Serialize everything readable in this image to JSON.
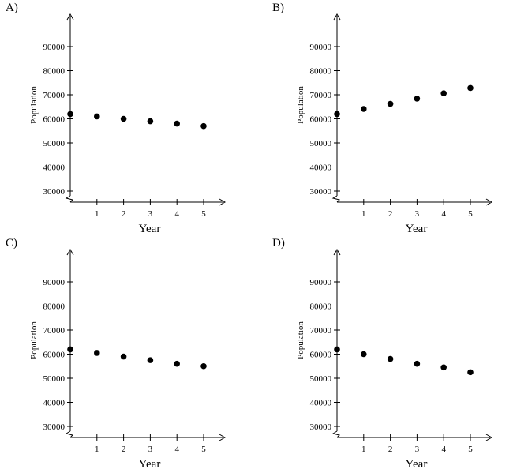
{
  "chart_data": [
    {
      "option": "A)",
      "type": "scatter",
      "xlabel": "Year",
      "ylabel": "Population",
      "x": [
        0,
        1,
        2,
        3,
        4,
        5
      ],
      "y": [
        62000,
        61000,
        60000,
        59000,
        58000,
        57000
      ],
      "xticks": [
        1,
        2,
        3,
        4,
        5
      ],
      "yticks": [
        30000,
        40000,
        50000,
        60000,
        70000,
        80000,
        90000
      ],
      "xlim": [
        0,
        5
      ],
      "ylim": [
        30000,
        90000
      ],
      "axis_break": "y",
      "grid": false,
      "legend": "none"
    },
    {
      "option": "B)",
      "type": "scatter",
      "xlabel": "Year",
      "ylabel": "Population",
      "x": [
        0,
        1,
        2,
        3,
        4,
        5
      ],
      "y": [
        62000,
        64100,
        66200,
        68400,
        70600,
        72800
      ],
      "xticks": [
        1,
        2,
        3,
        4,
        5
      ],
      "yticks": [
        30000,
        40000,
        50000,
        60000,
        70000,
        80000,
        90000
      ],
      "xlim": [
        0,
        5
      ],
      "ylim": [
        30000,
        90000
      ],
      "axis_break": "y",
      "grid": false,
      "legend": "none"
    },
    {
      "option": "C)",
      "type": "scatter",
      "xlabel": "Year",
      "ylabel": "Population",
      "x": [
        0,
        1,
        2,
        3,
        4,
        5
      ],
      "y": [
        62000,
        60500,
        59000,
        57500,
        56000,
        55000
      ],
      "xticks": [
        1,
        2,
        3,
        4,
        5
      ],
      "yticks": [
        30000,
        40000,
        50000,
        60000,
        70000,
        80000,
        90000
      ],
      "xlim": [
        0,
        5
      ],
      "ylim": [
        30000,
        90000
      ],
      "axis_break": "y",
      "grid": false,
      "legend": "none"
    },
    {
      "option": "D)",
      "type": "scatter",
      "xlabel": "Year",
      "ylabel": "Population",
      "x": [
        0,
        1,
        2,
        3,
        4,
        5
      ],
      "y": [
        62000,
        60000,
        58000,
        56000,
        54500,
        52500
      ],
      "xticks": [
        1,
        2,
        3,
        4,
        5
      ],
      "yticks": [
        30000,
        40000,
        50000,
        60000,
        70000,
        80000,
        90000
      ],
      "xlim": [
        0,
        5
      ],
      "ylim": [
        30000,
        90000
      ],
      "axis_break": "y",
      "grid": false,
      "legend": "none"
    }
  ]
}
